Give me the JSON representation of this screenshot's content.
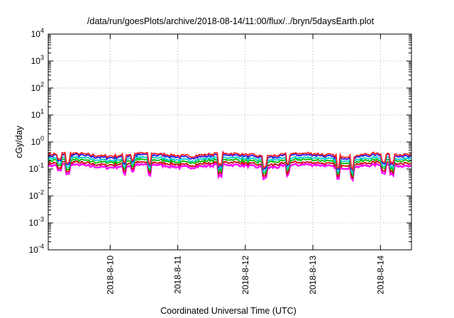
{
  "chart_data": {
    "type": "line",
    "title": "/data/run/goesPlots/archive/2018-08-14/11:00/flux/../bryn/5daysEarth.plot",
    "xlabel": "Coordinated Universal Time (UTC)",
    "ylabel": "cGy/day",
    "y_scale": "log",
    "ylim": [
      0.0001,
      10000
    ],
    "y_ticks": [
      {
        "base": "10",
        "exp": "-4"
      },
      {
        "base": "10",
        "exp": "-3"
      },
      {
        "base": "10",
        "exp": "-2"
      },
      {
        "base": "10",
        "exp": "-1"
      },
      {
        "base": "10",
        "exp": "0"
      },
      {
        "base": "10",
        "exp": "1"
      },
      {
        "base": "10",
        "exp": "2"
      },
      {
        "base": "10",
        "exp": "3"
      },
      {
        "base": "10",
        "exp": "4"
      }
    ],
    "xlim": [
      "2018-08-09T02:00",
      "2018-08-14T11:00"
    ],
    "x_ticks": [
      "2018-8-10",
      "2018-8-11",
      "2018-8-12",
      "2018-8-13",
      "2018-8-14"
    ],
    "grid": true,
    "legend": "none",
    "series_colors": [
      "#ff00ff",
      "#cc0000",
      "#00bb00",
      "#00cccc",
      "#1a1aff",
      "#ff2020"
    ],
    "series_levels": [
      0.13,
      0.16,
      0.2,
      0.24,
      0.3,
      0.34
    ],
    "dips": [
      {
        "x": "2018-08-09T06:00",
        "depth": 0.6
      },
      {
        "x": "2018-08-09T09:00",
        "depth": 0.45
      },
      {
        "x": "2018-08-10T05:00",
        "depth": 0.55
      },
      {
        "x": "2018-08-10T08:00",
        "depth": 0.6
      },
      {
        "x": "2018-08-10T14:00",
        "depth": 0.4
      },
      {
        "x": "2018-08-11T15:00",
        "depth": 0.4
      },
      {
        "x": "2018-08-12T07:00",
        "depth": 0.4
      },
      {
        "x": "2018-08-12T15:00",
        "depth": 0.45
      },
      {
        "x": "2018-08-13T09:00",
        "depth": 0.35
      },
      {
        "x": "2018-08-13T14:00",
        "depth": 0.35
      },
      {
        "x": "2018-08-14T01:00",
        "depth": 0.5
      },
      {
        "x": "2018-08-14T04:00",
        "depth": 0.45
      }
    ]
  }
}
